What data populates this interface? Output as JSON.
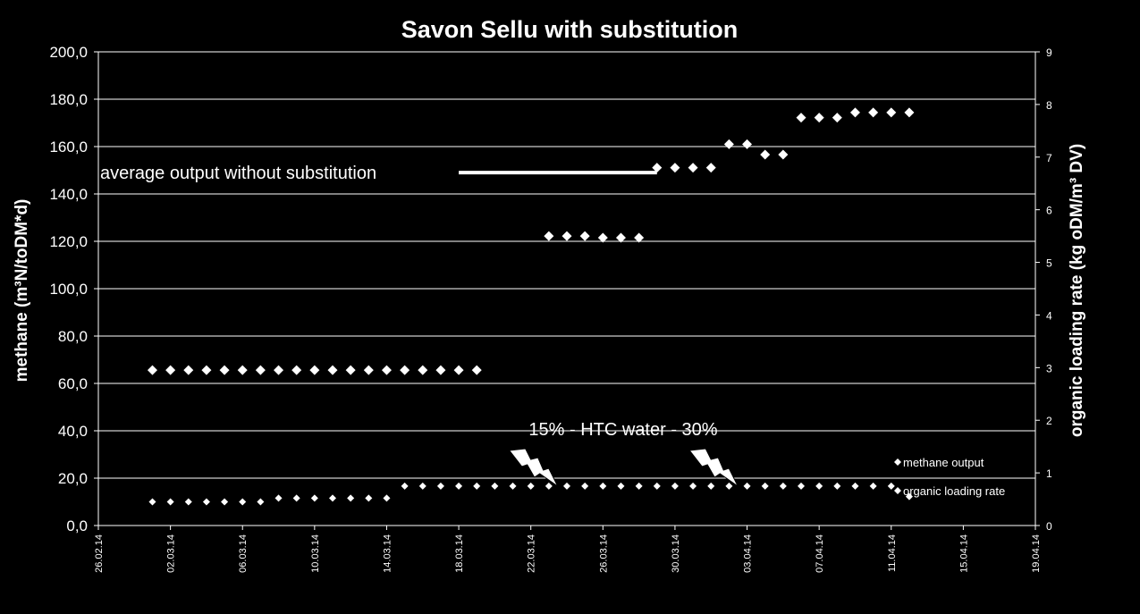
{
  "chart_data": {
    "type": "scatter",
    "title": "Savon Sellu with substitution",
    "ylabel": "methane (m³N/toDM*d)",
    "y2label": "organic loading rate (kg oDM/m³ DV)",
    "ylim": [
      0,
      200
    ],
    "y2lim": [
      0,
      9
    ],
    "y_ticks": [
      "0,0",
      "20,0",
      "40,0",
      "60,0",
      "80,0",
      "100,0",
      "120,0",
      "140,0",
      "160,0",
      "180,0",
      "200,0"
    ],
    "y2_ticks": [
      "0",
      "1",
      "2",
      "3",
      "4",
      "5",
      "6",
      "7",
      "8",
      "9"
    ],
    "x_ticks": [
      "26.02.14",
      "02.03.14",
      "06.03.14",
      "10.03.14",
      "14.03.14",
      "18.03.14",
      "22.03.14",
      "26.03.14",
      "30.03.14",
      "03.04.14",
      "07.04.14",
      "11.04.14",
      "15.04.14",
      "19.04.14"
    ],
    "grid": true,
    "series": [
      {
        "name": "methane output",
        "axis": "left",
        "marker": "diamond",
        "color": "#ffffff",
        "points": [
          [
            "2014-03-01",
            65.6
          ],
          [
            "2014-03-02",
            65.6
          ],
          [
            "2014-03-03",
            65.6
          ],
          [
            "2014-03-04",
            65.6
          ],
          [
            "2014-03-05",
            65.6
          ],
          [
            "2014-03-06",
            65.6
          ],
          [
            "2014-03-07",
            65.6
          ],
          [
            "2014-03-08",
            65.6
          ],
          [
            "2014-03-09",
            65.6
          ],
          [
            "2014-03-10",
            65.6
          ],
          [
            "2014-03-11",
            65.6
          ],
          [
            "2014-03-12",
            65.6
          ],
          [
            "2014-03-13",
            65.6
          ],
          [
            "2014-03-14",
            65.6
          ],
          [
            "2014-03-15",
            65.6
          ],
          [
            "2014-03-16",
            65.6
          ],
          [
            "2014-03-17",
            65.6
          ],
          [
            "2014-03-18",
            65.6
          ],
          [
            "2014-03-19",
            65.6
          ],
          [
            "2014-03-23",
            122.2
          ],
          [
            "2014-03-24",
            122.2
          ],
          [
            "2014-03-25",
            122.2
          ],
          [
            "2014-03-26",
            121.5
          ],
          [
            "2014-03-27",
            121.5
          ],
          [
            "2014-03-28",
            121.5
          ],
          [
            "2014-03-29",
            151.1
          ],
          [
            "2014-03-30",
            151.1
          ],
          [
            "2014-03-31",
            151.1
          ],
          [
            "2014-04-01",
            151.1
          ],
          [
            "2014-04-02",
            161.0
          ],
          [
            "2014-04-03",
            161.0
          ],
          [
            "2014-04-04",
            156.6
          ],
          [
            "2014-04-05",
            156.6
          ],
          [
            "2014-04-06",
            172.2
          ],
          [
            "2014-04-07",
            172.2
          ],
          [
            "2014-04-08",
            172.2
          ],
          [
            "2014-04-09",
            174.4
          ],
          [
            "2014-04-10",
            174.4
          ],
          [
            "2014-04-11",
            174.4
          ],
          [
            "2014-04-12",
            174.4
          ]
        ]
      },
      {
        "name": "organic loading rate",
        "axis": "right",
        "marker": "diamond",
        "color": "#ffffff",
        "points": [
          [
            "2014-03-01",
            0.45
          ],
          [
            "2014-03-02",
            0.45
          ],
          [
            "2014-03-03",
            0.45
          ],
          [
            "2014-03-04",
            0.45
          ],
          [
            "2014-03-05",
            0.45
          ],
          [
            "2014-03-06",
            0.45
          ],
          [
            "2014-03-07",
            0.45
          ],
          [
            "2014-03-08",
            0.52
          ],
          [
            "2014-03-09",
            0.52
          ],
          [
            "2014-03-10",
            0.52
          ],
          [
            "2014-03-11",
            0.52
          ],
          [
            "2014-03-12",
            0.52
          ],
          [
            "2014-03-13",
            0.52
          ],
          [
            "2014-03-14",
            0.52
          ],
          [
            "2014-03-15",
            0.75
          ],
          [
            "2014-03-16",
            0.75
          ],
          [
            "2014-03-17",
            0.75
          ],
          [
            "2014-03-18",
            0.75
          ],
          [
            "2014-03-19",
            0.75
          ],
          [
            "2014-03-20",
            0.75
          ],
          [
            "2014-03-21",
            0.75
          ],
          [
            "2014-03-22",
            0.75
          ],
          [
            "2014-03-23",
            0.75
          ],
          [
            "2014-03-24",
            0.75
          ],
          [
            "2014-03-25",
            0.75
          ],
          [
            "2014-03-26",
            0.75
          ],
          [
            "2014-03-27",
            0.75
          ],
          [
            "2014-03-28",
            0.75
          ],
          [
            "2014-03-29",
            0.75
          ],
          [
            "2014-03-30",
            0.75
          ],
          [
            "2014-03-31",
            0.75
          ],
          [
            "2014-04-01",
            0.75
          ],
          [
            "2014-04-02",
            0.75
          ],
          [
            "2014-04-03",
            0.75
          ],
          [
            "2014-04-04",
            0.75
          ],
          [
            "2014-04-05",
            0.75
          ],
          [
            "2014-04-06",
            0.75
          ],
          [
            "2014-04-07",
            0.75
          ],
          [
            "2014-04-08",
            0.75
          ],
          [
            "2014-04-09",
            0.75
          ],
          [
            "2014-04-10",
            0.75
          ],
          [
            "2014-04-11",
            0.75
          ],
          [
            "2014-04-12",
            0.55
          ]
        ]
      }
    ],
    "reference_line": {
      "label": "average output without substitution",
      "value": 149,
      "x_range": [
        "2014-03-18",
        "2014-03-29"
      ]
    },
    "annotation": {
      "text": "15% - HTC water - 30%",
      "bolt_dates": [
        "2014-03-22",
        "2014-04-01"
      ]
    },
    "legend": {
      "position": "bottom-right",
      "entries": [
        "methane output",
        "organic loading rate"
      ]
    }
  }
}
